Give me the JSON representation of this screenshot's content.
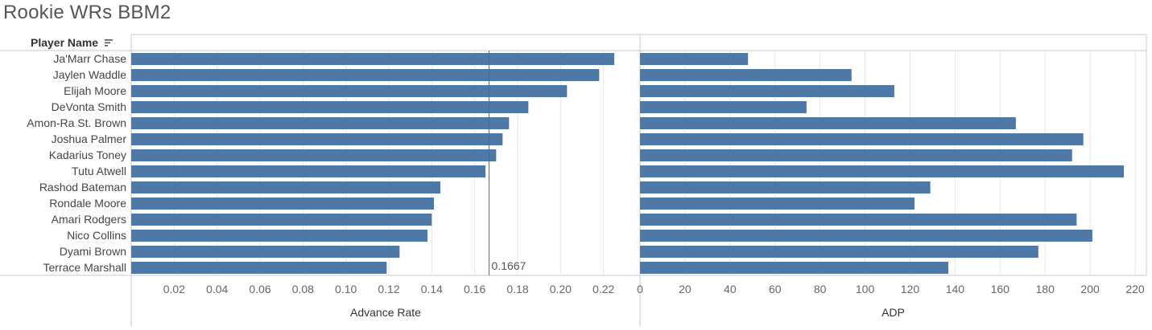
{
  "title": "Rookie WRs BBM2",
  "row_header": "Player Name",
  "sort_icon": "sort-descending-icon",
  "colors": {
    "bar": "#4e79a7",
    "grid": "#e6e6e6",
    "axis": "#c8c8c8",
    "ref_line": "#666666"
  },
  "chart_data": [
    {
      "type": "bar",
      "orientation": "horizontal",
      "categories": [
        "Ja'Marr Chase",
        "Jaylen Waddle",
        "Elijah Moore",
        "DeVonta Smith",
        "Amon-Ra St. Brown",
        "Joshua Palmer",
        "Kadarius Toney",
        "Tutu Atwell",
        "Rashod Bateman",
        "Rondale Moore",
        "Amari Rodgers",
        "Nico Collins",
        "Dyami Brown",
        "Terrace Marshall"
      ],
      "values": [
        0.225,
        0.218,
        0.203,
        0.185,
        0.176,
        0.173,
        0.17,
        0.165,
        0.144,
        0.141,
        0.14,
        0.138,
        0.125,
        0.119
      ],
      "xlabel": "Advance Rate",
      "xlim": [
        0,
        0.237
      ],
      "ticks": [
        "0.02",
        "0.04",
        "0.06",
        "0.08",
        "0.10",
        "0.12",
        "0.14",
        "0.16",
        "0.18",
        "0.20",
        "0.22"
      ],
      "tick_values": [
        0.02,
        0.04,
        0.06,
        0.08,
        0.1,
        0.12,
        0.14,
        0.16,
        0.18,
        0.2,
        0.22
      ],
      "reference_line": {
        "value": 0.1667,
        "label": "0.1667"
      }
    },
    {
      "type": "bar",
      "orientation": "horizontal",
      "categories": [
        "Ja'Marr Chase",
        "Jaylen Waddle",
        "Elijah Moore",
        "DeVonta Smith",
        "Amon-Ra St. Brown",
        "Joshua Palmer",
        "Kadarius Toney",
        "Tutu Atwell",
        "Rashod Bateman",
        "Rondale Moore",
        "Amari Rodgers",
        "Nico Collins",
        "Dyami Brown",
        "Terrace Marshall"
      ],
      "values": [
        48,
        94,
        113,
        74,
        167,
        197,
        192,
        215,
        129,
        122,
        194,
        201,
        177,
        137
      ],
      "xlabel": "ADP",
      "xlim": [
        0,
        225
      ],
      "ticks": [
        "0",
        "20",
        "40",
        "60",
        "80",
        "100",
        "120",
        "140",
        "160",
        "180",
        "200",
        "220"
      ],
      "tick_values": [
        0,
        20,
        40,
        60,
        80,
        100,
        120,
        140,
        160,
        180,
        200,
        220
      ]
    }
  ]
}
